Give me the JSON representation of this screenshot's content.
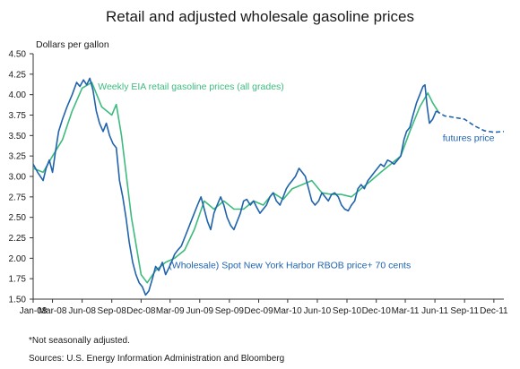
{
  "chart_data": {
    "type": "line",
    "title": "Retail and adjusted wholesale gasoline prices",
    "ylabel": "Dollars per gallon",
    "ylim": [
      1.5,
      4.5
    ],
    "yticks": [
      "1.50",
      "1.75",
      "2.00",
      "2.25",
      "2.50",
      "2.75",
      "3.00",
      "3.25",
      "3.50",
      "3.75",
      "4.00",
      "4.25",
      "4.50"
    ],
    "xlim": [
      "2008-01-01",
      "2012-01-01"
    ],
    "xticks": [
      "Jan-08",
      "Mar-08",
      "Jun-08",
      "Sep-08",
      "Dec-08",
      "Mar-09",
      "Jun-09",
      "Sep-09",
      "Dec-09",
      "Mar-10",
      "Jun-10",
      "Sep-10",
      "Dec-10",
      "Mar-11",
      "Jun-11",
      "Sep-11",
      "Dec-11"
    ],
    "xtick_dates": [
      "2008-01-01",
      "2008-03-01",
      "2008-06-01",
      "2008-09-01",
      "2008-12-01",
      "2009-03-01",
      "2009-06-01",
      "2009-09-01",
      "2009-12-01",
      "2010-03-01",
      "2010-06-01",
      "2010-09-01",
      "2010-12-01",
      "2011-03-01",
      "2011-06-01",
      "2011-09-01",
      "2011-12-01"
    ],
    "grid": false,
    "series": [
      {
        "name": "Weekly EIA retail gasoline prices (all grades)",
        "color": "#3dbb7e",
        "style": "solid",
        "points": [
          [
            "2008-01-01",
            3.1
          ],
          [
            "2008-02-01",
            3.05
          ],
          [
            "2008-03-01",
            3.25
          ],
          [
            "2008-04-01",
            3.45
          ],
          [
            "2008-05-01",
            3.8
          ],
          [
            "2008-06-01",
            4.08
          ],
          [
            "2008-07-01",
            4.15
          ],
          [
            "2008-08-01",
            3.85
          ],
          [
            "2008-09-01",
            3.75
          ],
          [
            "2008-09-15",
            3.88
          ],
          [
            "2008-10-01",
            3.5
          ],
          [
            "2008-11-01",
            2.5
          ],
          [
            "2008-12-01",
            1.8
          ],
          [
            "2008-12-20",
            1.7
          ],
          [
            "2009-01-15",
            1.85
          ],
          [
            "2009-02-15",
            1.95
          ],
          [
            "2009-03-15",
            2.0
          ],
          [
            "2009-04-15",
            2.1
          ],
          [
            "2009-05-15",
            2.35
          ],
          [
            "2009-06-15",
            2.7
          ],
          [
            "2009-07-15",
            2.6
          ],
          [
            "2009-08-15",
            2.7
          ],
          [
            "2009-09-15",
            2.6
          ],
          [
            "2009-10-15",
            2.6
          ],
          [
            "2009-11-15",
            2.7
          ],
          [
            "2009-12-15",
            2.65
          ],
          [
            "2010-01-15",
            2.8
          ],
          [
            "2010-02-15",
            2.72
          ],
          [
            "2010-03-15",
            2.85
          ],
          [
            "2010-04-15",
            2.9
          ],
          [
            "2010-05-15",
            2.95
          ],
          [
            "2010-06-15",
            2.8
          ],
          [
            "2010-07-15",
            2.78
          ],
          [
            "2010-08-15",
            2.78
          ],
          [
            "2010-09-15",
            2.75
          ],
          [
            "2010-10-15",
            2.85
          ],
          [
            "2010-11-15",
            2.95
          ],
          [
            "2010-12-15",
            3.05
          ],
          [
            "2011-01-15",
            3.15
          ],
          [
            "2011-02-15",
            3.25
          ],
          [
            "2011-03-15",
            3.55
          ],
          [
            "2011-04-15",
            3.85
          ],
          [
            "2011-05-10",
            4.02
          ],
          [
            "2011-05-25",
            3.9
          ],
          [
            "2011-06-15",
            3.77
          ]
        ]
      },
      {
        "name": "(Wholesale) Spot New York Harbor RBOB price+ 70 cents",
        "color": "#2063ad",
        "style": "solid",
        "points": [
          [
            "2008-01-01",
            3.15
          ],
          [
            "2008-01-15",
            3.05
          ],
          [
            "2008-02-01",
            2.95
          ],
          [
            "2008-02-10",
            3.1
          ],
          [
            "2008-02-20",
            3.2
          ],
          [
            "2008-03-01",
            3.05
          ],
          [
            "2008-03-10",
            3.3
          ],
          [
            "2008-03-20",
            3.55
          ],
          [
            "2008-04-01",
            3.7
          ],
          [
            "2008-04-15",
            3.85
          ],
          [
            "2008-05-01",
            4.0
          ],
          [
            "2008-05-15",
            4.15
          ],
          [
            "2008-05-25",
            4.1
          ],
          [
            "2008-06-05",
            4.18
          ],
          [
            "2008-06-15",
            4.12
          ],
          [
            "2008-06-25",
            4.2
          ],
          [
            "2008-07-05",
            4.05
          ],
          [
            "2008-07-15",
            3.8
          ],
          [
            "2008-07-25",
            3.65
          ],
          [
            "2008-08-05",
            3.55
          ],
          [
            "2008-08-15",
            3.65
          ],
          [
            "2008-08-25",
            3.5
          ],
          [
            "2008-09-05",
            3.4
          ],
          [
            "2008-09-15",
            3.35
          ],
          [
            "2008-09-25",
            2.95
          ],
          [
            "2008-10-05",
            2.75
          ],
          [
            "2008-10-15",
            2.5
          ],
          [
            "2008-10-25",
            2.2
          ],
          [
            "2008-11-05",
            1.95
          ],
          [
            "2008-11-15",
            1.8
          ],
          [
            "2008-11-25",
            1.7
          ],
          [
            "2008-12-05",
            1.65
          ],
          [
            "2008-12-15",
            1.55
          ],
          [
            "2008-12-25",
            1.6
          ],
          [
            "2009-01-05",
            1.75
          ],
          [
            "2009-01-15",
            1.9
          ],
          [
            "2009-01-25",
            1.85
          ],
          [
            "2009-02-05",
            1.95
          ],
          [
            "2009-02-15",
            1.8
          ],
          [
            "2009-02-25",
            1.88
          ],
          [
            "2009-03-05",
            1.95
          ],
          [
            "2009-03-15",
            2.05
          ],
          [
            "2009-03-25",
            2.1
          ],
          [
            "2009-04-05",
            2.15
          ],
          [
            "2009-04-15",
            2.25
          ],
          [
            "2009-04-25",
            2.35
          ],
          [
            "2009-05-05",
            2.45
          ],
          [
            "2009-05-15",
            2.55
          ],
          [
            "2009-05-25",
            2.65
          ],
          [
            "2009-06-05",
            2.75
          ],
          [
            "2009-06-15",
            2.6
          ],
          [
            "2009-06-25",
            2.45
          ],
          [
            "2009-07-05",
            2.35
          ],
          [
            "2009-07-15",
            2.55
          ],
          [
            "2009-07-25",
            2.65
          ],
          [
            "2009-08-05",
            2.75
          ],
          [
            "2009-08-15",
            2.65
          ],
          [
            "2009-08-25",
            2.5
          ],
          [
            "2009-09-05",
            2.4
          ],
          [
            "2009-09-15",
            2.35
          ],
          [
            "2009-09-25",
            2.45
          ],
          [
            "2009-10-05",
            2.55
          ],
          [
            "2009-10-15",
            2.7
          ],
          [
            "2009-10-25",
            2.72
          ],
          [
            "2009-11-05",
            2.65
          ],
          [
            "2009-11-15",
            2.7
          ],
          [
            "2009-11-25",
            2.62
          ],
          [
            "2009-12-05",
            2.55
          ],
          [
            "2009-12-15",
            2.6
          ],
          [
            "2009-12-25",
            2.65
          ],
          [
            "2010-01-05",
            2.75
          ],
          [
            "2010-01-15",
            2.8
          ],
          [
            "2010-01-25",
            2.7
          ],
          [
            "2010-02-05",
            2.65
          ],
          [
            "2010-02-15",
            2.75
          ],
          [
            "2010-02-25",
            2.85
          ],
          [
            "2010-03-05",
            2.9
          ],
          [
            "2010-03-15",
            2.95
          ],
          [
            "2010-03-25",
            3.0
          ],
          [
            "2010-04-05",
            3.1
          ],
          [
            "2010-04-15",
            3.05
          ],
          [
            "2010-04-25",
            3.0
          ],
          [
            "2010-05-05",
            2.85
          ],
          [
            "2010-05-15",
            2.7
          ],
          [
            "2010-05-25",
            2.65
          ],
          [
            "2010-06-05",
            2.7
          ],
          [
            "2010-06-15",
            2.8
          ],
          [
            "2010-06-25",
            2.75
          ],
          [
            "2010-07-05",
            2.7
          ],
          [
            "2010-07-15",
            2.78
          ],
          [
            "2010-07-25",
            2.8
          ],
          [
            "2010-08-05",
            2.75
          ],
          [
            "2010-08-15",
            2.65
          ],
          [
            "2010-08-25",
            2.6
          ],
          [
            "2010-09-05",
            2.58
          ],
          [
            "2010-09-15",
            2.65
          ],
          [
            "2010-09-25",
            2.7
          ],
          [
            "2010-10-05",
            2.85
          ],
          [
            "2010-10-15",
            2.9
          ],
          [
            "2010-10-25",
            2.85
          ],
          [
            "2010-11-05",
            2.95
          ],
          [
            "2010-11-15",
            3.0
          ],
          [
            "2010-11-25",
            3.05
          ],
          [
            "2010-12-05",
            3.1
          ],
          [
            "2010-12-15",
            3.15
          ],
          [
            "2010-12-25",
            3.12
          ],
          [
            "2011-01-05",
            3.2
          ],
          [
            "2011-01-15",
            3.18
          ],
          [
            "2011-01-25",
            3.15
          ],
          [
            "2011-02-05",
            3.2
          ],
          [
            "2011-02-15",
            3.25
          ],
          [
            "2011-02-25",
            3.45
          ],
          [
            "2011-03-05",
            3.55
          ],
          [
            "2011-03-15",
            3.6
          ],
          [
            "2011-03-25",
            3.75
          ],
          [
            "2011-04-05",
            3.9
          ],
          [
            "2011-04-15",
            4.0
          ],
          [
            "2011-04-25",
            4.1
          ],
          [
            "2011-05-01",
            4.12
          ],
          [
            "2011-05-08",
            3.85
          ],
          [
            "2011-05-15",
            3.65
          ],
          [
            "2011-05-25",
            3.7
          ],
          [
            "2011-06-05",
            3.8
          ]
        ]
      },
      {
        "name": "futures price",
        "color": "#2063ad",
        "style": "dashed",
        "points": [
          [
            "2011-06-05",
            3.8
          ],
          [
            "2011-07-01",
            3.74
          ],
          [
            "2011-08-01",
            3.72
          ],
          [
            "2011-09-01",
            3.7
          ],
          [
            "2011-10-01",
            3.62
          ],
          [
            "2011-11-01",
            3.56
          ],
          [
            "2011-12-01",
            3.54
          ],
          [
            "2012-01-01",
            3.55
          ]
        ]
      }
    ],
    "annotations": [
      {
        "text": "Weekly EIA retail gasoline prices (all grades)",
        "color": "#3dbb7e",
        "at": [
          "2008-07-20",
          4.06
        ]
      },
      {
        "text": "(Wholesale) Spot New York Harbor RBOB price+ 70 cents",
        "color": "#2063ad",
        "at": [
          "2009-02-25",
          1.88
        ]
      },
      {
        "text": "futures price",
        "color": "#2063ad",
        "at": [
          "2011-06-25",
          3.43
        ]
      }
    ]
  },
  "footnote": "*Not seasonally adjusted.",
  "sources": "Sources:  U.S. Energy Information Administration and Bloomberg"
}
